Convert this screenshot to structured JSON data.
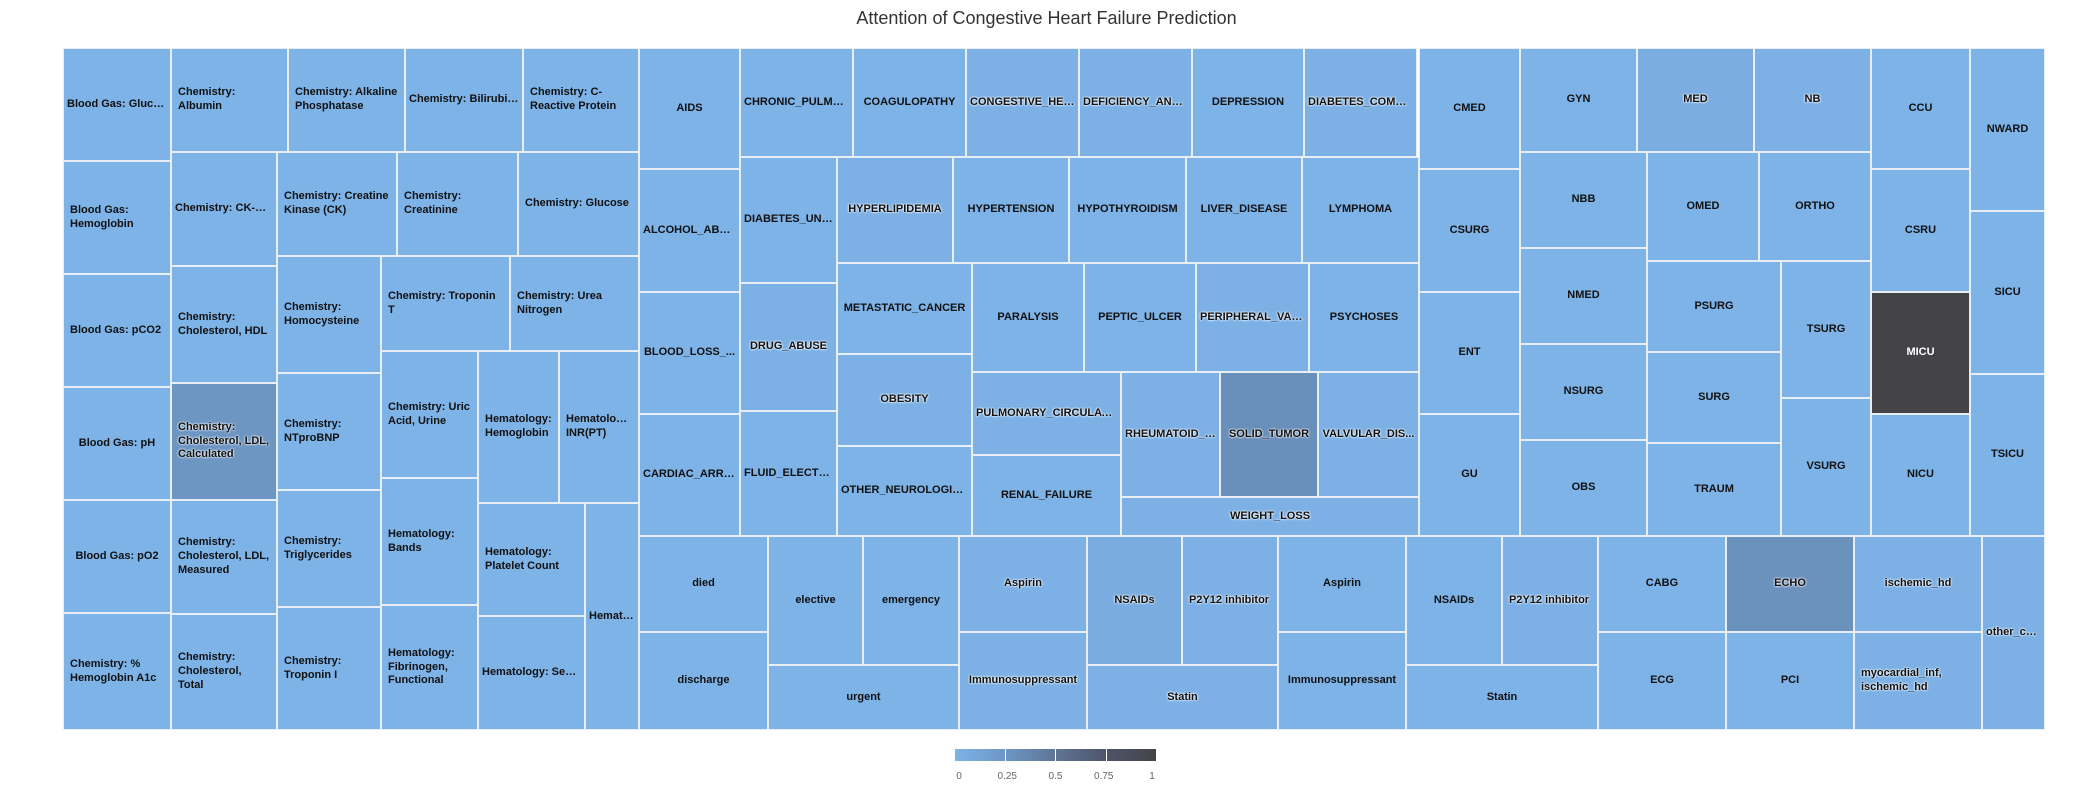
{
  "chart_data": {
    "type": "treemap",
    "title": "Attention of Congestive Heart Failure Prediction",
    "color_scale": {
      "min": 0,
      "max": 1,
      "ticks": [
        "0",
        "0.25",
        "0.5",
        "0.75",
        "1"
      ],
      "colors": [
        "#7eb3e8",
        "#6d96c3",
        "#5f7595",
        "#4f5469",
        "#444448"
      ]
    },
    "items": [
      {
        "label": "Blood Gas: Gluco...",
        "value": 0.0,
        "area": 1
      },
      {
        "label": "Blood Gas: Hemoglobin",
        "value": 0.0,
        "area": 1
      },
      {
        "label": "Blood Gas: pCO2",
        "value": 0.0,
        "area": 1
      },
      {
        "label": "Blood Gas: pH",
        "value": 0.0,
        "area": 1
      },
      {
        "label": "Blood Gas: pO2",
        "value": 0.0,
        "area": 1
      },
      {
        "label": "Chemistry: % Hemoglobin A1c",
        "value": 0.0,
        "area": 1
      },
      {
        "label": "Chemistry: Albumin",
        "value": 0.0,
        "area": 1
      },
      {
        "label": "Chemistry: CK-M...",
        "value": 0.0,
        "area": 1
      },
      {
        "label": "Chemistry: Cholesterol, HDL",
        "value": 0.0,
        "area": 1
      },
      {
        "label": "Chemistry: Cholesterol, LDL, Calculated",
        "value": 0.25,
        "area": 1
      },
      {
        "label": "Chemistry: Cholesterol, LDL, Measured",
        "value": 0.0,
        "area": 1
      },
      {
        "label": "Chemistry: Cholesterol, Total",
        "value": 0.0,
        "area": 1
      },
      {
        "label": "Chemistry: Alkaline Phosphatase",
        "value": 0.0,
        "area": 1
      },
      {
        "label": "Chemistry: Bilirubin...",
        "value": 0.0,
        "area": 1
      },
      {
        "label": "Chemistry: C-Reactive Protein",
        "value": 0.0,
        "area": 1
      },
      {
        "label": "Chemistry: Creatine Kinase (CK)",
        "value": 0.0,
        "area": 1
      },
      {
        "label": "Chemistry: Creatinine",
        "value": 0.0,
        "area": 1
      },
      {
        "label": "Chemistry: Glucose",
        "value": 0.0,
        "area": 1
      },
      {
        "label": "Chemistry: Homocysteine",
        "value": 0.0,
        "area": 1
      },
      {
        "label": "Chemistry: Troponin T",
        "value": 0.0,
        "area": 1
      },
      {
        "label": "Chemistry: Urea Nitrogen",
        "value": 0.0,
        "area": 1
      },
      {
        "label": "Chemistry: NTproBNP",
        "value": 0.0,
        "area": 1
      },
      {
        "label": "Chemistry: Uric Acid, Urine",
        "value": 0.0,
        "area": 1
      },
      {
        "label": "Hematology: Hemoglobin",
        "value": 0.0,
        "area": 1
      },
      {
        "label": "Hematology: INR(PT)",
        "value": 0.0,
        "area": 1
      },
      {
        "label": "Chemistry: Triglycerides",
        "value": 0.0,
        "area": 1
      },
      {
        "label": "Hematology: Bands",
        "value": 0.0,
        "area": 1
      },
      {
        "label": "Hematology: Platelet Count",
        "value": 0.0,
        "area": 1
      },
      {
        "label": "Chemistry: Troponin I",
        "value": 0.0,
        "area": 1
      },
      {
        "label": "Hematology: Fibrinogen, Functional",
        "value": 0.0,
        "area": 1
      },
      {
        "label": "Hematology: Sedi...",
        "value": 0.0,
        "area": 1
      },
      {
        "label": "Hemato...",
        "value": 0.0,
        "area": 1
      },
      {
        "label": "AIDS",
        "value": 0.0,
        "area": 1
      },
      {
        "label": "ALCOHOL_ABU...",
        "value": 0.0,
        "area": 1
      },
      {
        "label": "BLOOD_LOSS_...",
        "value": 0.0,
        "area": 1
      },
      {
        "label": "CARDIAC_ARRH...",
        "value": 0.0,
        "area": 1
      },
      {
        "label": "CHRONIC_PULMO...",
        "value": 0.0,
        "area": 1
      },
      {
        "label": "DIABETES_UNC...",
        "value": 0.0,
        "area": 1
      },
      {
        "label": "DRUG_ABUSE",
        "value": 0.02,
        "area": 1
      },
      {
        "label": "FLUID_ELECTR...",
        "value": 0.0,
        "area": 1
      },
      {
        "label": "COAGULOPATHY",
        "value": 0.0,
        "area": 1
      },
      {
        "label": "CONGESTIVE_HEA...",
        "value": 0.02,
        "area": 1
      },
      {
        "label": "DEFICIENCY_ANE...",
        "value": 0.02,
        "area": 1
      },
      {
        "label": "DEPRESSION",
        "value": 0.0,
        "area": 1
      },
      {
        "label": "DIABETES_COMPL...",
        "value": 0.02,
        "area": 1
      },
      {
        "label": "HYPERLIPIDEMIA",
        "value": 0.02,
        "area": 1
      },
      {
        "label": "HYPERTENSION",
        "value": 0.0,
        "area": 1
      },
      {
        "label": "HYPOTHYROIDISM",
        "value": 0.0,
        "area": 1
      },
      {
        "label": "LIVER_DISEASE",
        "value": 0.0,
        "area": 1
      },
      {
        "label": "LYMPHOMA",
        "value": 0.0,
        "area": 1
      },
      {
        "label": "METASTATIC_CANCER",
        "value": 0.0,
        "area": 1
      },
      {
        "label": "PARALYSIS",
        "value": 0.0,
        "area": 1
      },
      {
        "label": "PEPTIC_ULCER",
        "value": 0.0,
        "area": 1
      },
      {
        "label": "PERIPHERAL_VAS...",
        "value": 0.02,
        "area": 1
      },
      {
        "label": "PSYCHOSES",
        "value": 0.0,
        "area": 1
      },
      {
        "label": "OBESITY",
        "value": 0.02,
        "area": 1
      },
      {
        "label": "PULMONARY_CIRCULATI...",
        "value": 0.02,
        "area": 1
      },
      {
        "label": "RHEUMATOID_A...",
        "value": 0.02,
        "area": 1
      },
      {
        "label": "SOLID_TUMOR",
        "value": 0.3,
        "area": 1
      },
      {
        "label": "VALVULAR_DIS...",
        "value": 0.02,
        "area": 1
      },
      {
        "label": "OTHER_NEUROLOGIC...",
        "value": 0.0,
        "area": 1
      },
      {
        "label": "RENAL_FAILURE",
        "value": 0.0,
        "area": 1
      },
      {
        "label": "WEIGHT_LOSS",
        "value": 0.02,
        "area": 1
      },
      {
        "label": "CMED",
        "value": 0.0,
        "area": 1
      },
      {
        "label": "CSURG",
        "value": 0.0,
        "area": 1
      },
      {
        "label": "ENT",
        "value": 0.0,
        "area": 1
      },
      {
        "label": "GU",
        "value": 0.0,
        "area": 1
      },
      {
        "label": "GYN",
        "value": 0.0,
        "area": 1
      },
      {
        "label": "NBB",
        "value": 0.0,
        "area": 1
      },
      {
        "label": "NMED",
        "value": 0.0,
        "area": 1
      },
      {
        "label": "NSURG",
        "value": 0.0,
        "area": 1
      },
      {
        "label": "OBS",
        "value": 0.0,
        "area": 1
      },
      {
        "label": "MED",
        "value": 0.05,
        "area": 1
      },
      {
        "label": "NB",
        "value": 0.02,
        "area": 1
      },
      {
        "label": "OMED",
        "value": 0.0,
        "area": 1
      },
      {
        "label": "ORTHO",
        "value": 0.0,
        "area": 1
      },
      {
        "label": "PSURG",
        "value": 0.0,
        "area": 1
      },
      {
        "label": "TSURG",
        "value": 0.0,
        "area": 1
      },
      {
        "label": "SURG",
        "value": 0.0,
        "area": 1
      },
      {
        "label": "VSURG",
        "value": 0.0,
        "area": 1
      },
      {
        "label": "TRAUM",
        "value": 0.0,
        "area": 1
      },
      {
        "label": "CCU",
        "value": 0.0,
        "area": 1
      },
      {
        "label": "CSRU",
        "value": 0.0,
        "area": 1
      },
      {
        "label": "MICU",
        "value": 1.0,
        "area": 1
      },
      {
        "label": "NICU",
        "value": 0.0,
        "area": 1
      },
      {
        "label": "NWARD",
        "value": 0.0,
        "area": 1
      },
      {
        "label": "SICU",
        "value": 0.0,
        "area": 1
      },
      {
        "label": "TSICU",
        "value": 0.0,
        "area": 1
      },
      {
        "label": "died",
        "value": 0.0,
        "area": 1
      },
      {
        "label": "discharge",
        "value": 0.0,
        "area": 1
      },
      {
        "label": "elective",
        "value": 0.0,
        "area": 1
      },
      {
        "label": "emergency",
        "value": 0.0,
        "area": 1
      },
      {
        "label": "urgent",
        "value": 0.0,
        "area": 1
      },
      {
        "label": "Aspirin",
        "value": 0.02,
        "area": 1
      },
      {
        "label": "Immunosuppressant",
        "value": 0.02,
        "area": 1
      },
      {
        "label": "NSAIDs",
        "value": 0.06,
        "area": 1
      },
      {
        "label": "P2Y12 inhibitor",
        "value": 0.02,
        "area": 1
      },
      {
        "label": "Statin",
        "value": 0.02,
        "area": 1
      },
      {
        "label": "Aspirin",
        "value": 0.0,
        "area": 1
      },
      {
        "label": "Immunosuppressant",
        "value": 0.0,
        "area": 1
      },
      {
        "label": "NSAIDs",
        "value": 0.0,
        "area": 1
      },
      {
        "label": "P2Y12 inhibitor",
        "value": 0.02,
        "area": 1
      },
      {
        "label": "Statin",
        "value": 0.0,
        "area": 1
      },
      {
        "label": "CABG",
        "value": 0.0,
        "area": 1
      },
      {
        "label": "ECG",
        "value": 0.0,
        "area": 1
      },
      {
        "label": "ECHO",
        "value": 0.28,
        "area": 1
      },
      {
        "label": "PCI",
        "value": 0.0,
        "area": 1
      },
      {
        "label": "ischemic_hd",
        "value": 0.02,
        "area": 1
      },
      {
        "label": "myocardial_inf, ischemic_hd",
        "value": 0.02,
        "area": 1
      },
      {
        "label": "other_car...",
        "value": 0.02,
        "area": 1
      }
    ]
  }
}
